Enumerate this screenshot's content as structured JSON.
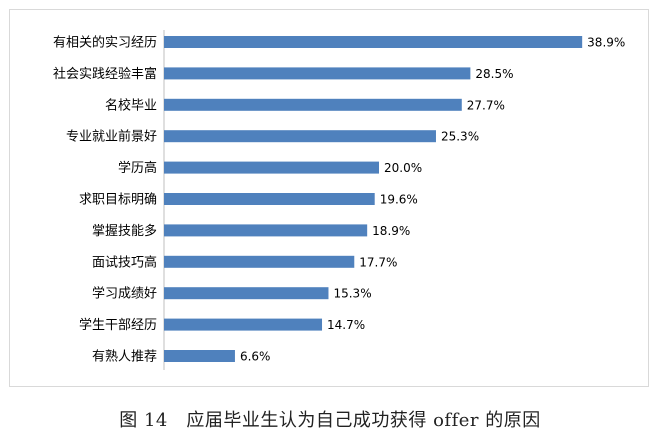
{
  "caption": "图 14　应届毕业生认为自己成功获得 offer 的原因",
  "colors": {
    "bar": "#4f81bd",
    "axis": "#bfbfbf",
    "frame": "#d9d9d9"
  },
  "chart_data": {
    "type": "bar",
    "orientation": "horizontal",
    "categories": [
      "有相关的实习经历",
      "社会实践经验丰富",
      "名校毕业",
      "专业就业前景好",
      "学历高",
      "求职目标明确",
      "掌握技能多",
      "面试技巧高",
      "学习成绩好",
      "学生干部经历",
      "有熟人推荐"
    ],
    "values": [
      38.9,
      28.5,
      27.7,
      25.3,
      20.0,
      19.6,
      18.9,
      17.7,
      15.3,
      14.7,
      6.6
    ],
    "value_labels": [
      "38.9%",
      "28.5%",
      "27.7%",
      "25.3%",
      "20.0%",
      "19.6%",
      "18.9%",
      "17.7%",
      "15.3%",
      "14.7%",
      "6.6%"
    ],
    "title": "",
    "xlabel": "",
    "ylabel": "",
    "xlim": [
      0,
      40
    ],
    "grid": false,
    "legend": "none",
    "data_labels": true
  }
}
